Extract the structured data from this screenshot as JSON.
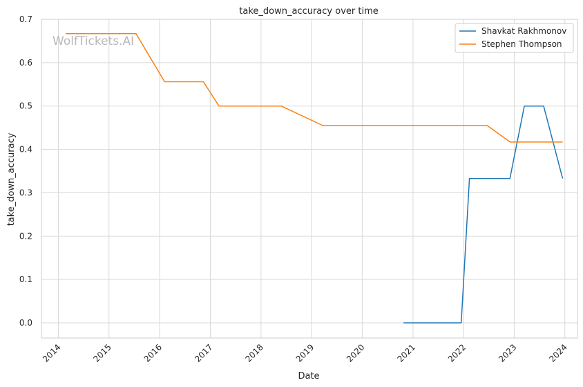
{
  "chart_data": {
    "type": "line",
    "title": "take_down_accuracy over time",
    "xlabel": "Date",
    "ylabel": "take_down_accuracy",
    "watermark": "WolfTickets.AI",
    "x_ticks": [
      "2014",
      "2015",
      "2016",
      "2017",
      "2018",
      "2019",
      "2020",
      "2021",
      "2022",
      "2023",
      "2024"
    ],
    "y_ticks": [
      "0.0",
      "0.1",
      "0.2",
      "0.3",
      "0.4",
      "0.5",
      "0.6",
      "0.7"
    ],
    "xlim": [
      "2013-09-01",
      "2024-04-01"
    ],
    "ylim": [
      -0.035,
      0.7
    ],
    "grid": true,
    "legend_position": "top-right",
    "series": [
      {
        "name": "Shavkat Rakhmonov",
        "color": "#1f77b4",
        "points": [
          [
            "2020-10-25",
            0.0
          ],
          [
            "2021-12-15",
            0.0
          ],
          [
            "2022-02-12",
            0.333
          ],
          [
            "2022-12-01",
            0.333
          ],
          [
            "2023-03-15",
            0.5
          ],
          [
            "2023-08-01",
            0.5
          ],
          [
            "2023-12-16",
            0.333
          ]
        ]
      },
      {
        "name": "Stephen Thompson",
        "color": "#ff7f0e",
        "points": [
          [
            "2014-02-22",
            0.667
          ],
          [
            "2015-07-15",
            0.667
          ],
          [
            "2016-02-06",
            0.556
          ],
          [
            "2016-11-12",
            0.556
          ],
          [
            "2017-03-04",
            0.5
          ],
          [
            "2018-05-27",
            0.5
          ],
          [
            "2019-03-23",
            0.455
          ],
          [
            "2022-06-20",
            0.455
          ],
          [
            "2022-12-03",
            0.417
          ],
          [
            "2023-12-16",
            0.417
          ]
        ]
      }
    ]
  }
}
